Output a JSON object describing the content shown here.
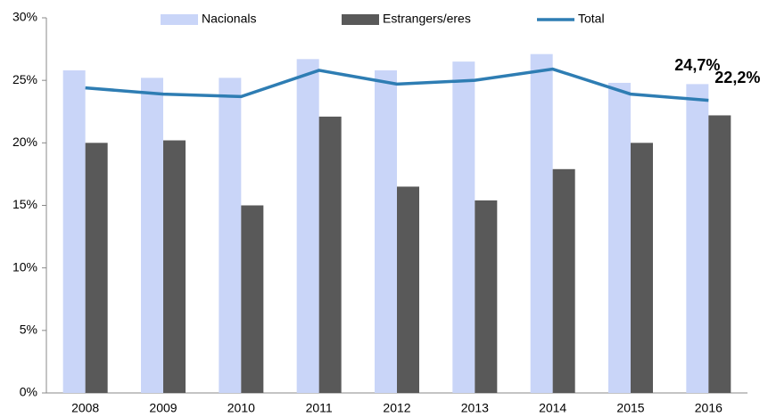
{
  "chart_data": {
    "type": "bar-line",
    "categories": [
      "2008",
      "2009",
      "2010",
      "2011",
      "2012",
      "2013",
      "2014",
      "2015",
      "2016"
    ],
    "series": [
      {
        "name": "Nacionals",
        "type": "bar",
        "color": "#c9d5f8",
        "values": [
          25.8,
          25.2,
          25.2,
          26.7,
          25.8,
          26.5,
          27.1,
          24.8,
          24.7
        ],
        "value_labels": [
          null,
          null,
          null,
          null,
          null,
          null,
          null,
          null,
          "24,7%"
        ]
      },
      {
        "name": "Estrangers/eres",
        "type": "bar",
        "color": "#595959",
        "values": [
          20.0,
          20.2,
          15.0,
          22.1,
          16.5,
          15.4,
          17.9,
          20.0,
          22.2
        ],
        "value_labels": [
          null,
          null,
          null,
          null,
          null,
          null,
          null,
          null,
          "22,2%"
        ]
      },
      {
        "name": "Total",
        "type": "line",
        "color": "#2e7db3",
        "values": [
          24.4,
          23.9,
          23.7,
          25.8,
          24.7,
          25.0,
          25.9,
          23.9,
          23.4
        ]
      }
    ],
    "ylim": [
      0,
      30
    ],
    "yticks": [
      {
        "value": 0,
        "label": "0%"
      },
      {
        "value": 5,
        "label": "5%"
      },
      {
        "value": 10,
        "label": "10%"
      },
      {
        "value": 15,
        "label": "15%"
      },
      {
        "value": 20,
        "label": "20%"
      },
      {
        "value": 25,
        "label": "25%"
      },
      {
        "value": 30,
        "label": "30%"
      }
    ],
    "grid": false,
    "legend": "top"
  }
}
